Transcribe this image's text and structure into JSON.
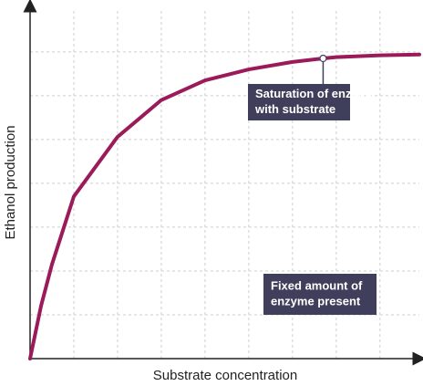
{
  "chart_data": {
    "type": "line",
    "x_label": "Substrate concentration",
    "y_label": "Ethanol production",
    "xlim": [
      0,
      8.9
    ],
    "ylim": [
      0,
      8.1
    ],
    "xticks": [
      1,
      2,
      3,
      4,
      5,
      6,
      7,
      8
    ],
    "yticks": [
      1,
      2,
      3,
      4,
      5,
      6,
      7
    ],
    "grid": true,
    "x": [
      0,
      0.25,
      0.5,
      1,
      2,
      3,
      4,
      5,
      6,
      6.7,
      7,
      8,
      8.9
    ],
    "series": [
      {
        "color": "#9b1b5a",
        "values": [
          0,
          1.2,
          2.15,
          3.7,
          5.06,
          5.9,
          6.35,
          6.6,
          6.77,
          6.85,
          6.88,
          6.92,
          6.94
        ]
      }
    ],
    "annotations": [
      {
        "lines": [
          "Saturation of enzyme",
          "with substrate"
        ],
        "x": 6.7,
        "y": 6.85
      },
      {
        "lines": [
          "Fixed amount of",
          "enzyme present"
        ]
      }
    ]
  }
}
